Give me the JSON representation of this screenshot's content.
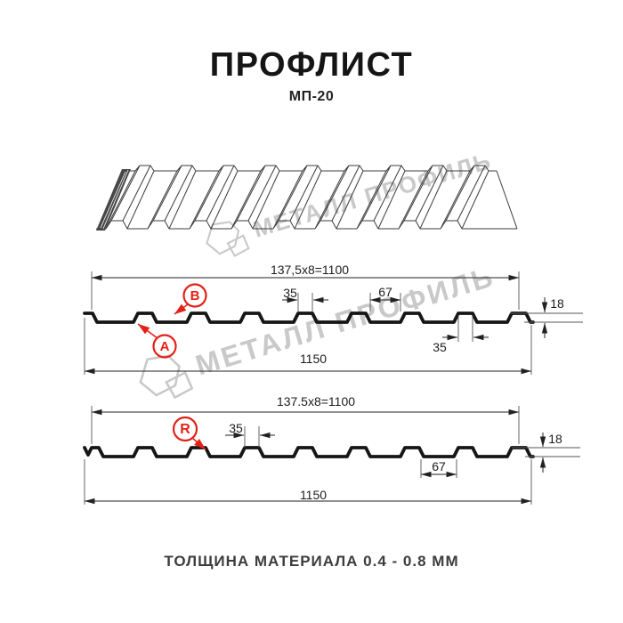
{
  "page": {
    "title": "ПРОФЛИСТ",
    "subtitle": "МП-20",
    "footer_note": "ТОЛЩИНА МАТЕРИАЛА 0.4 - 0.8 ММ"
  },
  "watermark": {
    "brand": "МЕТАЛЛ ПРОФИЛЬ"
  },
  "colors": {
    "accent_red": "#e32118",
    "profile_line": "#161616",
    "dim_line": "#3a3a3a",
    "watermark_gray": "#c9c9c9"
  },
  "profile_top": {
    "description": "cross-section side A/B",
    "dim_pitch": "137,5x8=1100",
    "dim_crest_width": "35",
    "dim_valley_width": "67",
    "dim_height": "18",
    "dim_rib_base": "35",
    "dim_total_width": "1150",
    "point_labels": {
      "a": "A",
      "b": "B"
    }
  },
  "profile_bottom": {
    "description": "cross-section reverse side R",
    "dim_pitch": "137.5x8=1100",
    "dim_crest_width": "35",
    "dim_valley_width": "67",
    "dim_height": "18",
    "dim_total_width": "1150",
    "point_labels": {
      "r": "R"
    }
  }
}
